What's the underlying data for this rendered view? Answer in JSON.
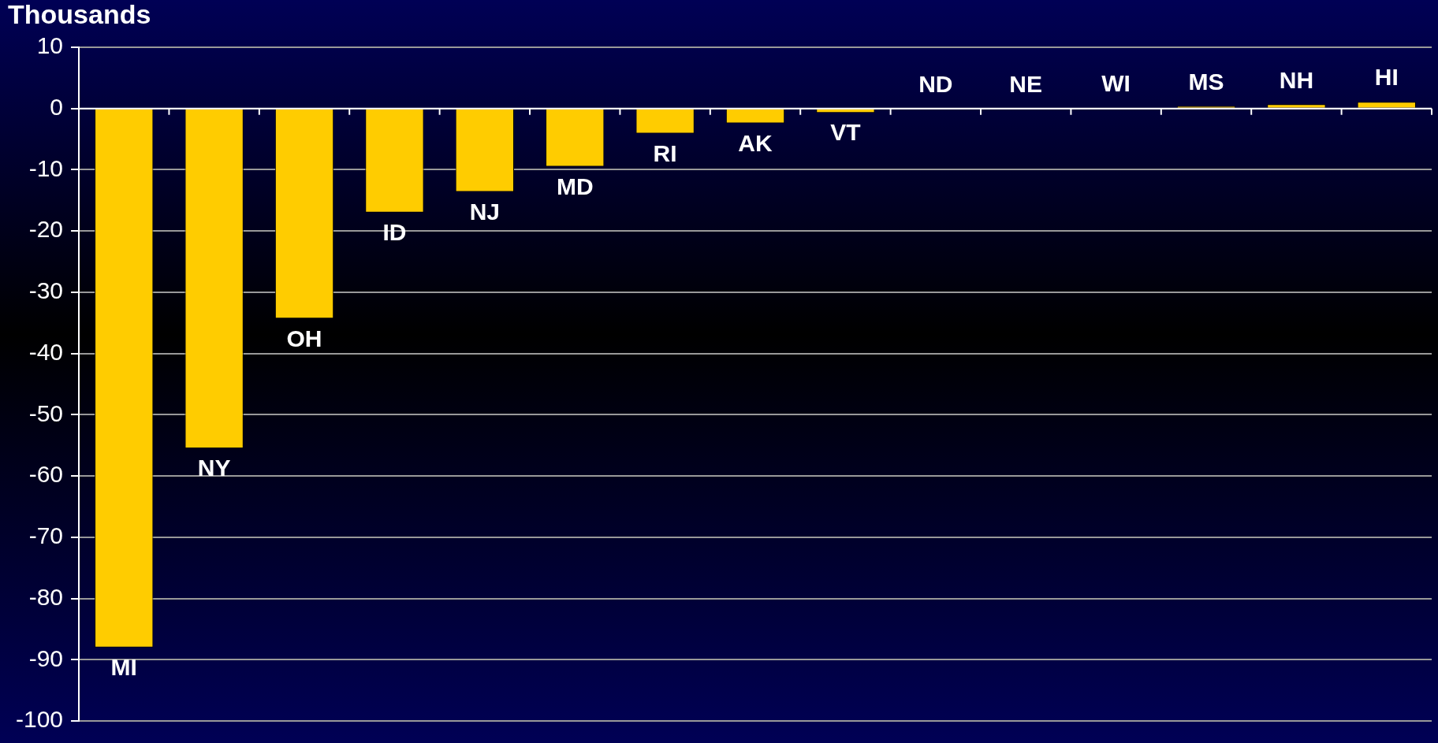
{
  "chart_data": {
    "type": "bar",
    "ylabel": "Thousands",
    "categories": [
      "MI",
      "NY",
      "OH",
      "ID",
      "NJ",
      "MD",
      "RI",
      "AK",
      "VT",
      "ND",
      "NE",
      "WI",
      "MS",
      "NH",
      "HI"
    ],
    "values": [
      -88,
      -55.5,
      -34.3,
      -17,
      -13.6,
      -9.5,
      -4.1,
      -2.4,
      -0.7,
      0,
      0,
      0.1,
      0.4,
      0.7,
      1.1
    ],
    "color": "#ffcc00",
    "ylim": [
      -100,
      10
    ],
    "yticks": [
      -100,
      -90,
      -80,
      -70,
      -60,
      -50,
      -40,
      -30,
      -20,
      -10,
      0,
      10
    ],
    "grid": "y",
    "legend": false
  }
}
